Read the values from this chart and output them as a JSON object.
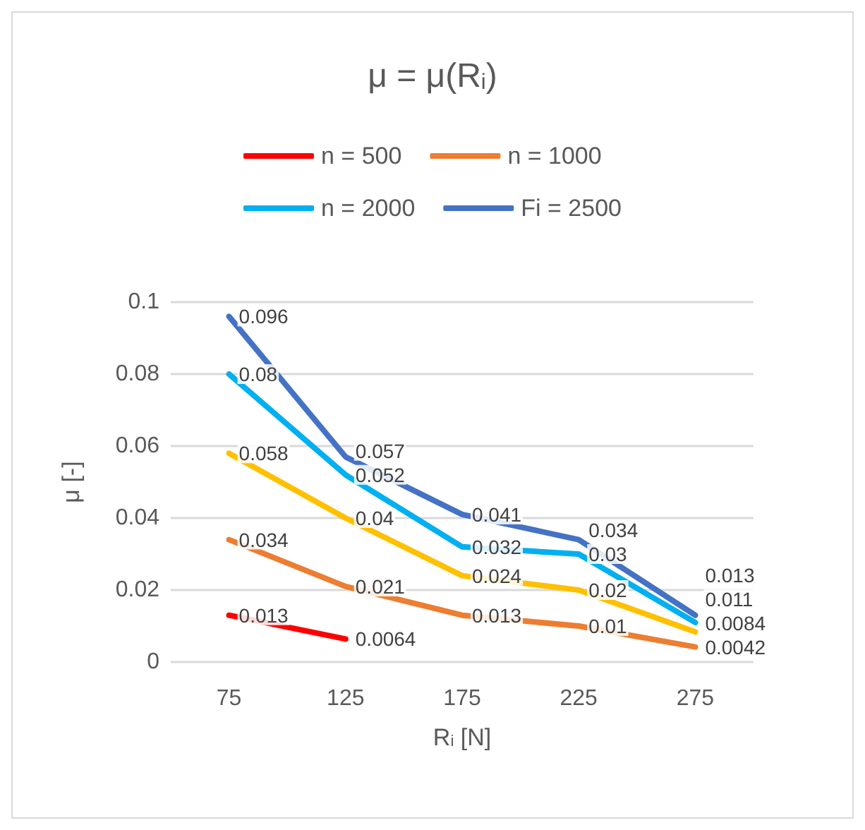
{
  "chart_data": {
    "type": "line",
    "title": "μ = μ(R$_{i}$)",
    "xlabel": "R$_{i}$ [N]",
    "ylabel": "μ [-]",
    "categories": [
      "75",
      "125",
      "175",
      "225",
      "275"
    ],
    "series": [
      {
        "name": "n = 500",
        "color": "#ff0000",
        "values": [
          0.013,
          0.0064,
          null,
          null,
          null
        ]
      },
      {
        "name": "n = 1000",
        "color": "#ed7d31",
        "values": [
          0.034,
          0.021,
          0.013,
          0.01,
          0.0042
        ]
      },
      {
        "color": "#ffc000",
        "values": [
          0.058,
          0.04,
          0.024,
          0.02,
          0.0084
        ]
      },
      {
        "name": "n = 2000",
        "color": "#00b0f0",
        "values": [
          0.08,
          0.052,
          0.032,
          0.03,
          0.011
        ]
      },
      {
        "name": "Fi = 2500",
        "color": "#4472c4",
        "values": [
          0.096,
          0.057,
          0.041,
          0.034,
          0.013
        ]
      }
    ],
    "ylim": [
      0,
      0.1
    ],
    "yticks": [
      0,
      0.02,
      0.04,
      0.06,
      0.08,
      0.1
    ],
    "grid": "y",
    "legend": "top",
    "data_labels": true,
    "marker": "none",
    "line_style": "solid"
  }
}
